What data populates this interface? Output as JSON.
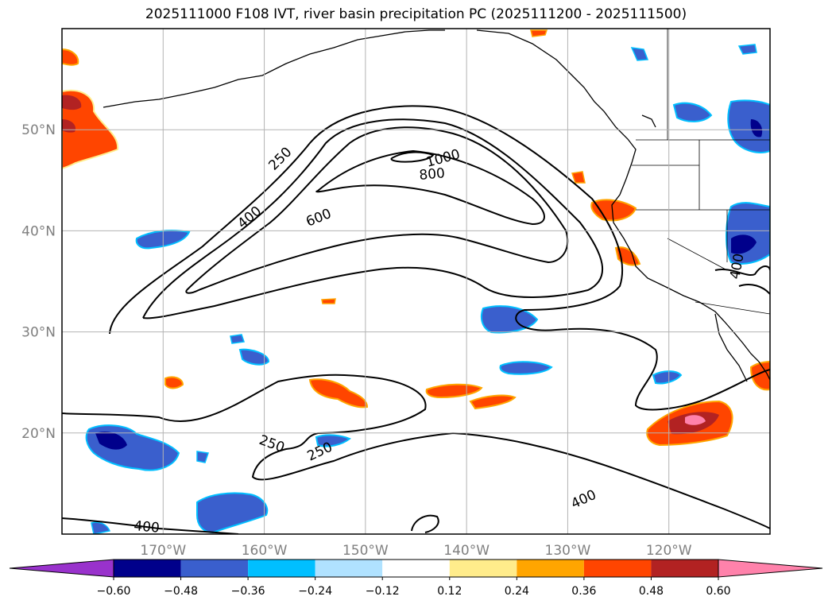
{
  "chart_data": {
    "type": "heatmap",
    "title": "2025111000 F108 IVT, river basin precipitation PC (2025111200 - 2025111500)",
    "map": {
      "lon_range": [
        -180,
        -110
      ],
      "lat_range": [
        10,
        60
      ],
      "lon_ticks": [
        {
          "value": -170,
          "label": "170°W"
        },
        {
          "value": -160,
          "label": "160°W"
        },
        {
          "value": -150,
          "label": "150°W"
        },
        {
          "value": -140,
          "label": "140°W"
        },
        {
          "value": -130,
          "label": "130°W"
        },
        {
          "value": -120,
          "label": "120°W"
        }
      ],
      "lat_ticks": [
        {
          "value": 20,
          "label": "20°N"
        },
        {
          "value": 30,
          "label": "30°N"
        },
        {
          "value": 40,
          "label": "40°N"
        },
        {
          "value": 50,
          "label": "50°N"
        }
      ],
      "grid": true
    },
    "ivt_contours": [
      {
        "level": 250,
        "label": "250"
      },
      {
        "level": 400,
        "label": "400"
      },
      {
        "level": 600,
        "label": "600"
      },
      {
        "level": 800,
        "label": "800"
      },
      {
        "level": 1000,
        "label": "1000"
      }
    ],
    "colorbar": {
      "orientation": "horizontal",
      "extend": "both",
      "boundaries": [
        -0.6,
        -0.48,
        -0.36,
        -0.24,
        -0.12,
        0.12,
        0.24,
        0.36,
        0.48,
        0.6
      ],
      "tick_labels": [
        "−0.60",
        "−0.48",
        "−0.36",
        "−0.24",
        "−0.12",
        "0.12",
        "0.24",
        "0.36",
        "0.48",
        "0.60"
      ],
      "colors": [
        "#9932cc",
        "#00008b",
        "#3a5fcd",
        "#00bfff",
        "#b0e2ff",
        "#ffffff",
        "#ffec8b",
        "#ffa500",
        "#ff4500",
        "#b22222",
        "#ff82ab"
      ]
    }
  }
}
